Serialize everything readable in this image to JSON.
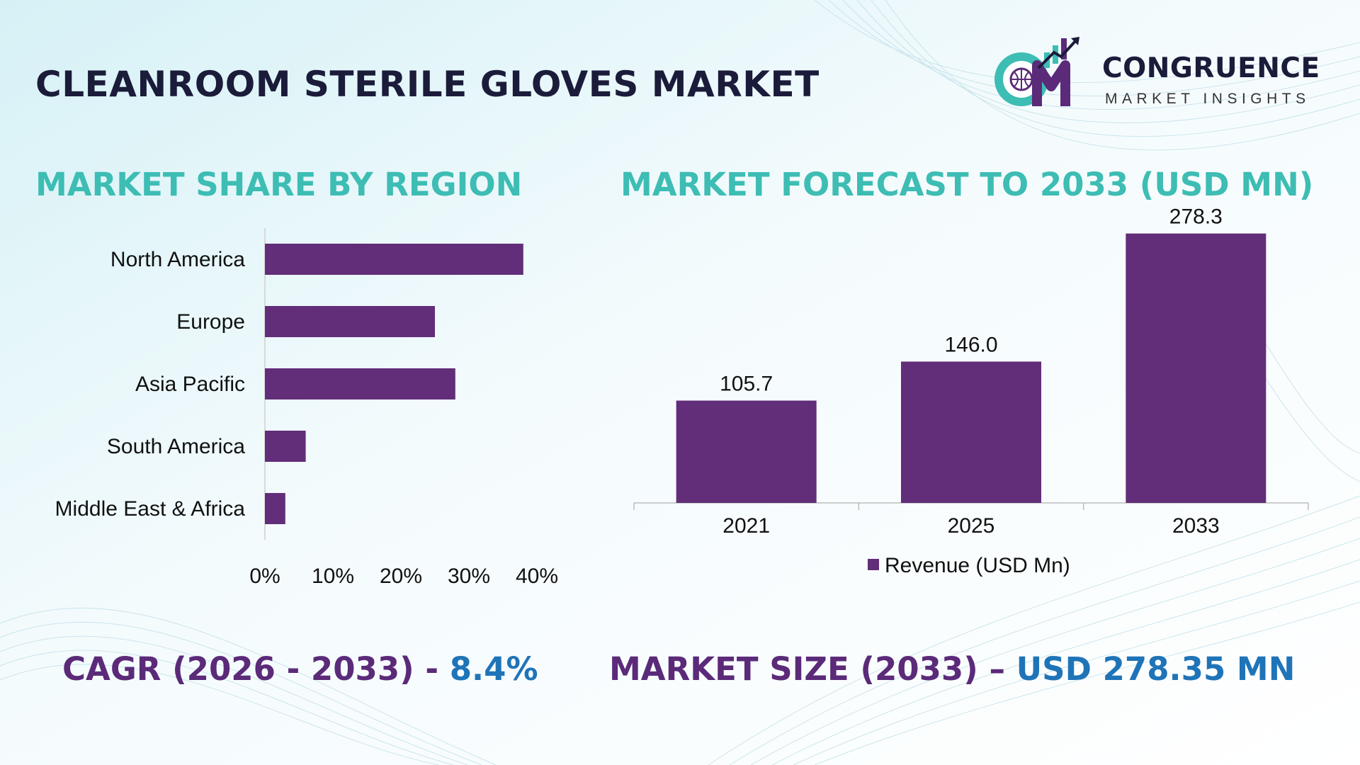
{
  "header": {
    "title": "CLEANROOM STERILE GLOVES MARKET"
  },
  "logo": {
    "name": "CONGRUENCE",
    "tagline": "MARKET INSIGHTS",
    "icon": "cm-globe-chart-logo"
  },
  "region_section": {
    "title": "MARKET SHARE BY REGION"
  },
  "forecast_section": {
    "title": "MARKET FORECAST TO 2033 (USD MN)"
  },
  "stats": {
    "cagr_label": "CAGR (2026 - 2033) - ",
    "cagr_value": "8.4%",
    "size_label": "MARKET SIZE (2033) – ",
    "size_value": "USD 278.35 MN"
  },
  "colors": {
    "bar": "#622d79",
    "section_title": "#3dbdb3",
    "stat_label": "#5b2a79",
    "stat_value": "#1f74b8"
  },
  "chart_data": [
    {
      "type": "bar",
      "orientation": "horizontal",
      "title": "MARKET SHARE BY REGION",
      "categories": [
        "North America",
        "Europe",
        "Asia Pacific",
        "South America",
        "Middle East & Africa"
      ],
      "values": [
        38,
        25,
        28,
        6,
        3
      ],
      "unit": "%",
      "xlim": [
        0,
        40
      ],
      "xticks": [
        "0%",
        "10%",
        "20%",
        "30%",
        "40%"
      ],
      "grid": false
    },
    {
      "type": "bar",
      "orientation": "vertical",
      "title": "MARKET FORECAST TO 2033 (USD MN)",
      "categories": [
        "2021",
        "2025",
        "2033"
      ],
      "series": [
        {
          "name": "Revenue (USD Mn)",
          "values": [
            105.7,
            146.0,
            278.3
          ],
          "labels": [
            "105.7",
            "146.0",
            "278.3"
          ]
        }
      ],
      "ylim": [
        0,
        300
      ],
      "legend": "bottom-center",
      "grid": false
    }
  ]
}
